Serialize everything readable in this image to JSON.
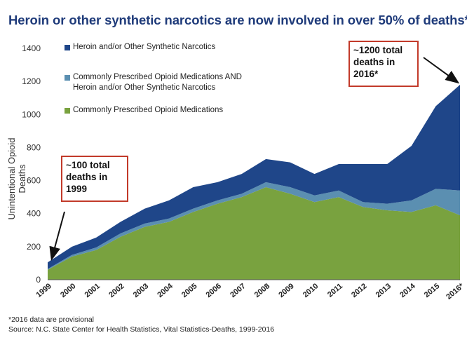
{
  "colors": {
    "heroin": "#1f4689",
    "both": "#5b8fb1",
    "prescribed": "#79a23f",
    "title": "#1f3b7a",
    "callout_border": "#c23a2a"
  },
  "chart_data": {
    "type": "area",
    "title": "Heroin or other synthetic narcotics are now involved in over 50% of deaths*",
    "ylabel": "Unintentional Opioid Deaths",
    "xlabel": "",
    "ylim": [
      0,
      1400
    ],
    "yticks": [
      0,
      200,
      400,
      600,
      800,
      1000,
      1200,
      1400
    ],
    "categories": [
      "1999",
      "2000",
      "2001",
      "2002",
      "2003",
      "2004",
      "2005",
      "2006",
      "2007",
      "2008",
      "2009",
      "2010",
      "2011",
      "2012",
      "2013",
      "2014",
      "2015",
      "2016*"
    ],
    "stacking": "stacked",
    "series": [
      {
        "name": "Commonly Prescribed Opioid Medications",
        "color_key": "prescribed",
        "values": [
          60,
          140,
          180,
          260,
          320,
          350,
          410,
          460,
          500,
          560,
          520,
          470,
          500,
          440,
          420,
          410,
          450,
          390
        ]
      },
      {
        "name": "Commonly Prescribed Opioid Medications AND Heroin and/or Other Synthetic Narcotics",
        "color_key": "both",
        "values": [
          5,
          10,
          15,
          20,
          20,
          20,
          20,
          20,
          20,
          30,
          40,
          40,
          40,
          30,
          40,
          70,
          100,
          150
        ]
      },
      {
        "name": "Heroin and/or Other Synthetic Narcotics",
        "color_key": "heroin",
        "values": [
          40,
          50,
          60,
          70,
          90,
          110,
          130,
          110,
          120,
          140,
          150,
          130,
          160,
          230,
          240,
          330,
          500,
          640
        ]
      }
    ],
    "legend_order": [
      "Heroin and/or Other Synthetic Narcotics",
      "Commonly Prescribed Opioid Medications AND\nHeroin and/or Other Synthetic Narcotics",
      "Commonly Prescribed Opioid Medications"
    ],
    "legend_position": "top-left",
    "annotations": [
      {
        "lines": [
          "~100 total",
          "deaths in",
          "1999"
        ],
        "points_to": "1999"
      },
      {
        "lines": [
          "~1200 total",
          "deaths in",
          "2016*"
        ],
        "points_to": "2016*"
      }
    ]
  },
  "legend": {
    "heroin": "Heroin and/or Other Synthetic Narcotics",
    "both_line1": "Commonly Prescribed Opioid Medications AND",
    "both_line2": "Heroin and/or Other Synthetic Narcotics",
    "prescribed": "Commonly Prescribed Opioid Medications"
  },
  "callouts": {
    "left": {
      "line1": "~100 total",
      "line2": "deaths in",
      "line3": "1999"
    },
    "right": {
      "line1": "~1200 total",
      "line2": "deaths in",
      "line3": "2016*"
    }
  },
  "footnotes": {
    "note": "*2016 data are provisional",
    "source": "Source: N.C. State Center for Health Statistics, Vital Statistics-Deaths, 1999-2016"
  }
}
